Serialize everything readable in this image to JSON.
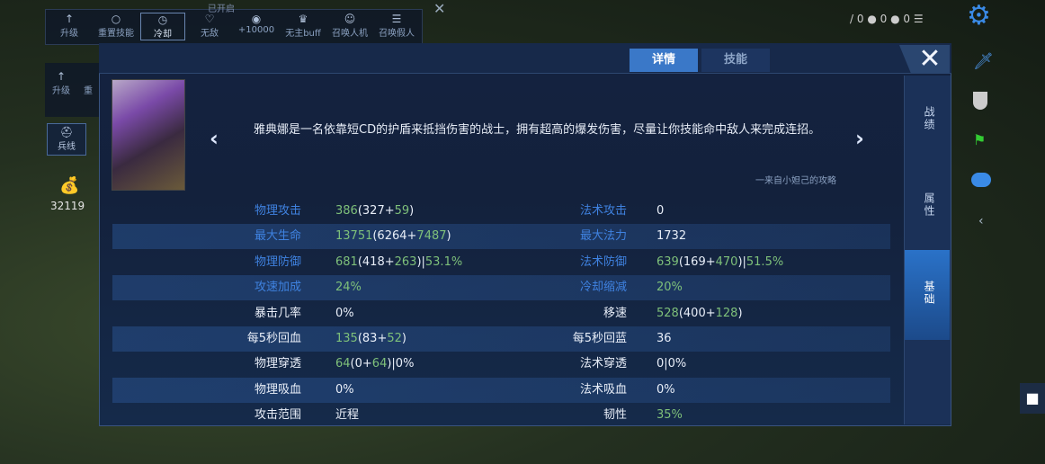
{
  "colors": {
    "accent": "#2a72c8",
    "green": "#7ec07a",
    "label_blue": "#3f82e0",
    "panel": "#142240"
  },
  "toolbar": {
    "title": "已开启",
    "items": [
      {
        "label": "升级",
        "icon": "arrow-up-icon"
      },
      {
        "label": "重置技能",
        "icon": "refresh-icon"
      },
      {
        "label": "冷却",
        "icon": "clock-icon",
        "selected": true
      },
      {
        "label": "无敌",
        "icon": "heart-icon"
      },
      {
        "label": "+10000",
        "icon": "coin-icon"
      },
      {
        "label": "无主buff",
        "icon": "crown-icon"
      },
      {
        "label": "召唤人机",
        "icon": "person-icon"
      },
      {
        "label": "召唤假人",
        "icon": "menu-icon"
      }
    ],
    "row2": [
      {
        "label": "升级"
      },
      {
        "label": "重"
      }
    ],
    "minions_label": "兵线",
    "gold": "32119"
  },
  "status": {
    "counts": [
      "0",
      "0",
      "0"
    ]
  },
  "panel": {
    "tabs": [
      {
        "label": "详情",
        "active": true
      },
      {
        "label": "技能",
        "active": false
      }
    ],
    "close_icon": "close-icon",
    "side_tabs": [
      {
        "label": "战绩"
      },
      {
        "label": "属性"
      },
      {
        "label": "基础",
        "active": true
      }
    ],
    "description": "雅典娜是一名依靠短CD的护盾来抵挡伤害的战士，拥有超高的爆发伤害，尽量让你技能命中敌人来完成连招。",
    "credit": "一来自小妲己的攻略",
    "stats": [
      {
        "l": {
          "label": "物理攻击",
          "blue": true,
          "value": [
            [
              "386",
              "g"
            ],
            [
              "(327+",
              "w"
            ],
            [
              "59",
              "g"
            ],
            [
              ")",
              "w"
            ]
          ]
        },
        "r": {
          "label": "法术攻击",
          "blue": true,
          "value": [
            [
              "0",
              "w"
            ]
          ]
        }
      },
      {
        "l": {
          "label": "最大生命",
          "blue": true,
          "value": [
            [
              "13751",
              "g"
            ],
            [
              "(6264+",
              "w"
            ],
            [
              "7487",
              "g"
            ],
            [
              ")",
              "w"
            ]
          ]
        },
        "r": {
          "label": "最大法力",
          "blue": true,
          "value": [
            [
              "1732",
              "w"
            ]
          ]
        }
      },
      {
        "l": {
          "label": "物理防御",
          "blue": true,
          "value": [
            [
              "681",
              "g"
            ],
            [
              "(418+",
              "w"
            ],
            [
              "263",
              "g"
            ],
            [
              ")|",
              "w"
            ],
            [
              "53.1%",
              "g"
            ]
          ]
        },
        "r": {
          "label": "法术防御",
          "blue": true,
          "value": [
            [
              "639",
              "g"
            ],
            [
              "(169+",
              "w"
            ],
            [
              "470",
              "g"
            ],
            [
              ")|",
              "w"
            ],
            [
              "51.5%",
              "g"
            ]
          ]
        }
      },
      {
        "l": {
          "label": "攻速加成",
          "blue": true,
          "value": [
            [
              "24%",
              "g"
            ]
          ]
        },
        "r": {
          "label": "冷却缩减",
          "blue": true,
          "value": [
            [
              "20%",
              "g"
            ]
          ]
        }
      },
      {
        "l": {
          "label": "暴击几率",
          "value": [
            [
              "0%",
              "w"
            ]
          ]
        },
        "r": {
          "label": "移速",
          "value": [
            [
              "528",
              "g"
            ],
            [
              "(400+",
              "w"
            ],
            [
              "128",
              "g"
            ],
            [
              ")",
              "w"
            ]
          ]
        }
      },
      {
        "l": {
          "label": "每5秒回血",
          "value": [
            [
              "135",
              "g"
            ],
            [
              "(83+",
              "w"
            ],
            [
              "52",
              "g"
            ],
            [
              ")",
              "w"
            ]
          ]
        },
        "r": {
          "label": "每5秒回蓝",
          "value": [
            [
              "36",
              "w"
            ]
          ]
        }
      },
      {
        "l": {
          "label": "物理穿透",
          "value": [
            [
              "64",
              "g"
            ],
            [
              "(0+",
              "w"
            ],
            [
              "64",
              "g"
            ],
            [
              ")|0%",
              "w"
            ]
          ]
        },
        "r": {
          "label": "法术穿透",
          "value": [
            [
              "0|0%",
              "w"
            ]
          ]
        }
      },
      {
        "l": {
          "label": "物理吸血",
          "value": [
            [
              "0%",
              "w"
            ]
          ]
        },
        "r": {
          "label": "法术吸血",
          "value": [
            [
              "0%",
              "w"
            ]
          ]
        }
      },
      {
        "l": {
          "label": "攻击范围",
          "value": [
            [
              "近程",
              "w"
            ]
          ]
        },
        "r": {
          "label": "韧性",
          "value": [
            [
              "35%",
              "g"
            ]
          ]
        }
      }
    ]
  }
}
